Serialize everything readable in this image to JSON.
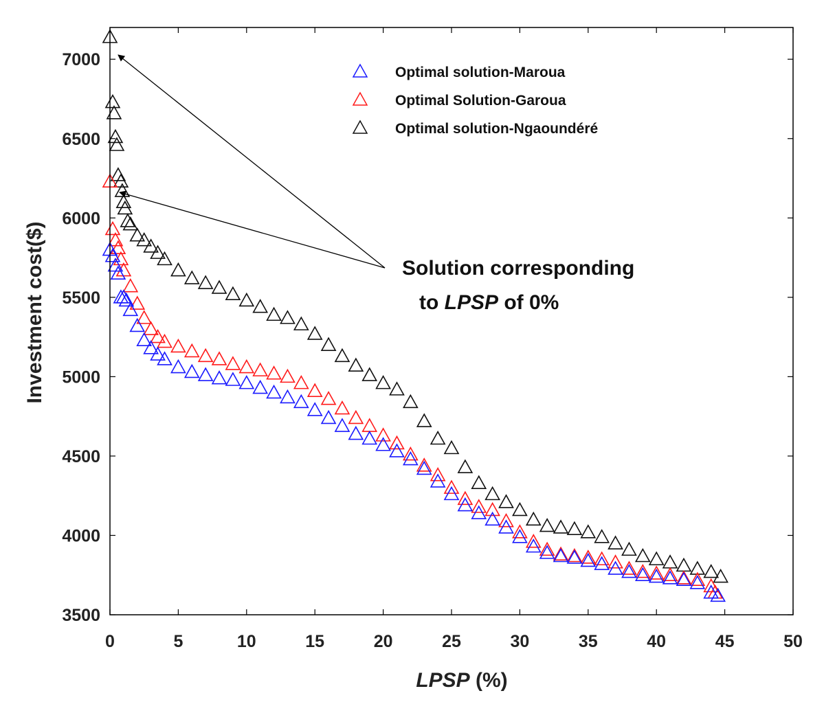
{
  "chart_data": {
    "type": "scatter",
    "title": "",
    "xlabel_italic": "LPSP",
    "xlabel_rest": " (%)",
    "ylabel": "Investment cost($)",
    "xlim": [
      0,
      50
    ],
    "ylim": [
      3500,
      7200
    ],
    "xticks": [
      0,
      5,
      10,
      15,
      20,
      25,
      30,
      35,
      40,
      45,
      50
    ],
    "yticks": [
      3500,
      4000,
      4500,
      5000,
      5500,
      6000,
      6500,
      7000
    ],
    "grid": false,
    "legend_position": "top-right",
    "marker": "open-triangle",
    "series": [
      {
        "name": "Optimal solution-Maroua",
        "color": "#1a1aff",
        "x": [
          0,
          0.2,
          0.4,
          0.6,
          0.8,
          1,
          1.2,
          1.5,
          2,
          2.5,
          3,
          3.5,
          4,
          5,
          6,
          7,
          8,
          9,
          10,
          11,
          12,
          13,
          14,
          15,
          16,
          17,
          18,
          19,
          20,
          21,
          22,
          23,
          24,
          25,
          26,
          27,
          28,
          29,
          30,
          31,
          32,
          33,
          34,
          35,
          36,
          37,
          38,
          39,
          40,
          41,
          42,
          43,
          44,
          44.5
        ],
        "y": [
          5800,
          5760,
          5700,
          5650,
          5500,
          5500,
          5480,
          5420,
          5320,
          5230,
          5180,
          5140,
          5110,
          5060,
          5030,
          5010,
          4990,
          4980,
          4960,
          4930,
          4900,
          4870,
          4840,
          4790,
          4740,
          4690,
          4640,
          4610,
          4570,
          4530,
          4480,
          4420,
          4340,
          4260,
          4190,
          4140,
          4100,
          4050,
          3990,
          3930,
          3890,
          3870,
          3860,
          3840,
          3820,
          3790,
          3770,
          3750,
          3740,
          3730,
          3720,
          3700,
          3640,
          3620
        ]
      },
      {
        "name": "Optimal Solution-Garoua",
        "color": "#ff1a1a",
        "x": [
          0,
          0.2,
          0.4,
          0.6,
          0.8,
          1,
          1.5,
          2,
          2.5,
          3,
          3.5,
          4,
          5,
          6,
          7,
          8,
          9,
          10,
          11,
          12,
          13,
          14,
          15,
          16,
          17,
          18,
          19,
          20,
          21,
          22,
          23,
          24,
          25,
          26,
          27,
          28,
          29,
          30,
          31,
          32,
          33,
          34,
          35,
          36,
          37,
          38,
          39,
          40,
          41,
          42,
          43,
          44,
          44.3
        ],
        "y": [
          6230,
          5930,
          5860,
          5810,
          5740,
          5670,
          5570,
          5460,
          5370,
          5300,
          5250,
          5220,
          5190,
          5160,
          5130,
          5110,
          5080,
          5060,
          5040,
          5020,
          5000,
          4960,
          4910,
          4860,
          4800,
          4740,
          4690,
          4630,
          4580,
          4510,
          4440,
          4380,
          4300,
          4230,
          4180,
          4160,
          4090,
          4020,
          3960,
          3910,
          3880,
          3870,
          3860,
          3850,
          3830,
          3790,
          3770,
          3760,
          3750,
          3730,
          3720,
          3680,
          3640
        ]
      },
      {
        "name": "Optimal solution-Ngaoundéré",
        "color": "#111111",
        "x": [
          0,
          0.2,
          0.3,
          0.4,
          0.5,
          0.6,
          0.8,
          0.9,
          1,
          1.1,
          1.3,
          1.5,
          2,
          2.5,
          3,
          3.5,
          4,
          5,
          6,
          7,
          8,
          9,
          10,
          11,
          12,
          13,
          14,
          15,
          16,
          17,
          18,
          19,
          20,
          21,
          22,
          23,
          24,
          25,
          26,
          27,
          28,
          29,
          30,
          31,
          32,
          33,
          34,
          35,
          36,
          37,
          38,
          39,
          40,
          41,
          42,
          43,
          44,
          44.7
        ],
        "y": [
          7140,
          6730,
          6660,
          6510,
          6460,
          6270,
          6230,
          6170,
          6100,
          6060,
          5980,
          5960,
          5890,
          5860,
          5820,
          5780,
          5740,
          5670,
          5620,
          5590,
          5560,
          5520,
          5480,
          5440,
          5390,
          5370,
          5330,
          5270,
          5200,
          5130,
          5070,
          5010,
          4960,
          4920,
          4840,
          4720,
          4610,
          4550,
          4430,
          4330,
          4260,
          4210,
          4160,
          4100,
          4060,
          4050,
          4040,
          4020,
          3990,
          3950,
          3910,
          3870,
          3850,
          3830,
          3810,
          3790,
          3770,
          3740
        ]
      }
    ],
    "annotation": {
      "line1": "Solution corresponding",
      "line2_pre": "to ",
      "line2_italic": "LPSP",
      "line2_post": " of 0%"
    }
  }
}
